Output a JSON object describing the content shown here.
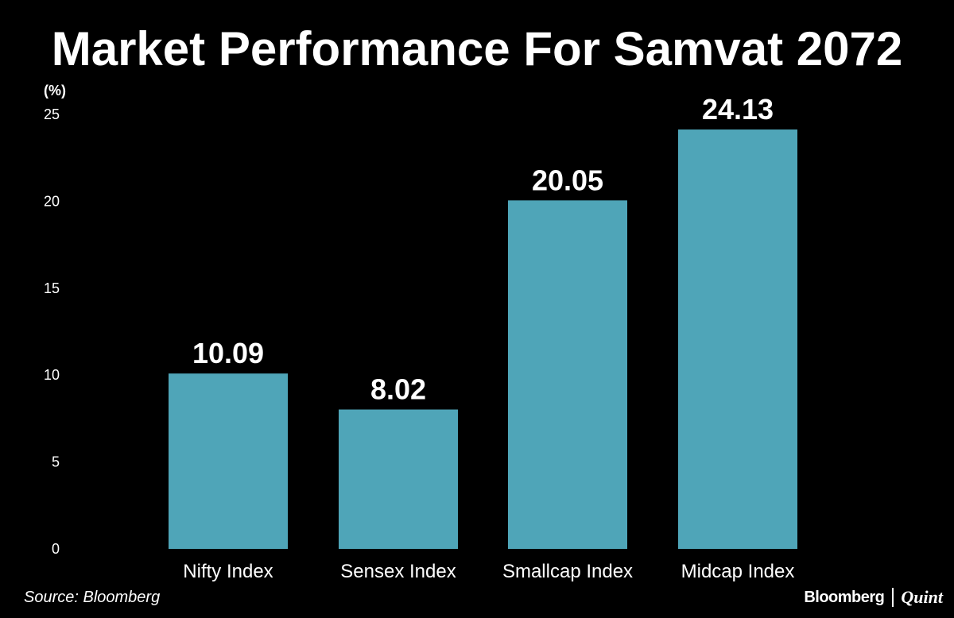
{
  "chart_data": {
    "type": "bar",
    "title": "Market Performance For Samvat 2072",
    "ylabel": "(%)",
    "xlabel": "",
    "categories": [
      "Nifty Index",
      "Sensex Index",
      "Smallcap Index",
      "Midcap Index"
    ],
    "values": [
      10.09,
      8.02,
      20.05,
      24.13
    ],
    "data_labels": [
      "10.09",
      "8.02",
      "20.05",
      "24.13"
    ],
    "ylim": [
      0,
      25
    ],
    "yticks": [
      0,
      5,
      10,
      15,
      20,
      25
    ],
    "grid": false,
    "legend": "none",
    "bar_color": "#4FA5B8",
    "background_color": "#000000",
    "text_color": "#FFFFFF"
  },
  "footer": {
    "source": "Source: Bloomberg",
    "brand_primary": "Bloomberg",
    "brand_secondary": "Quint"
  }
}
